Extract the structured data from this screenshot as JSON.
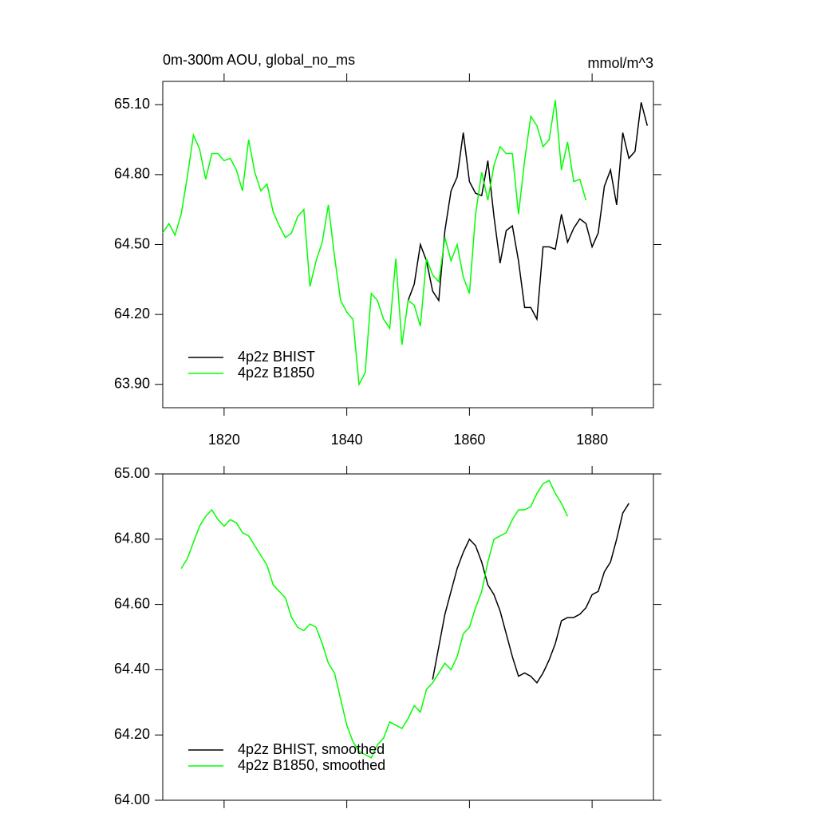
{
  "chart_data": [
    {
      "type": "line",
      "title": "0m-300m AOU, global_no_ms",
      "units": "mmol/m^3",
      "x": [
        1810,
        1811,
        1812,
        1813,
        1814,
        1815,
        1816,
        1817,
        1818,
        1819,
        1820,
        1821,
        1822,
        1823,
        1824,
        1825,
        1826,
        1827,
        1828,
        1829,
        1830,
        1831,
        1832,
        1833,
        1834,
        1835,
        1836,
        1837,
        1838,
        1839,
        1840,
        1841,
        1842,
        1843,
        1844,
        1845,
        1846,
        1847,
        1848,
        1849,
        1850,
        1851,
        1852,
        1853,
        1854,
        1855,
        1856,
        1857,
        1858,
        1859,
        1860,
        1861,
        1862,
        1863,
        1864,
        1865,
        1866,
        1867,
        1868,
        1869,
        1870,
        1871,
        1872,
        1873,
        1874,
        1875,
        1876,
        1877,
        1878,
        1879,
        1880,
        1881,
        1882,
        1883,
        1884,
        1885,
        1886,
        1887,
        1888,
        1889
      ],
      "series": [
        {
          "name": "4p2z BHIST",
          "color": "#000000",
          "values": [
            null,
            null,
            null,
            null,
            null,
            null,
            null,
            null,
            null,
            null,
            null,
            null,
            null,
            null,
            null,
            null,
            null,
            null,
            null,
            null,
            null,
            null,
            null,
            null,
            null,
            null,
            null,
            null,
            null,
            null,
            null,
            null,
            null,
            null,
            null,
            null,
            null,
            null,
            null,
            null,
            64.26,
            64.33,
            64.5,
            64.43,
            64.3,
            64.26,
            64.56,
            64.73,
            64.79,
            64.98,
            64.77,
            64.72,
            64.71,
            64.86,
            64.62,
            64.42,
            64.56,
            64.58,
            64.43,
            64.23,
            64.23,
            64.18,
            64.49,
            64.49,
            64.48,
            64.63,
            64.51,
            64.57,
            64.61,
            64.59,
            64.49,
            64.55,
            64.75,
            64.82,
            64.67,
            64.98,
            64.87,
            64.9,
            65.11,
            65.01
          ]
        },
        {
          "name": "4p2z B1850",
          "color": "#00ff00",
          "values": [
            64.55,
            64.59,
            64.54,
            64.63,
            64.79,
            64.97,
            64.91,
            64.78,
            64.89,
            64.89,
            64.86,
            64.87,
            64.82,
            64.73,
            64.95,
            64.81,
            64.73,
            64.76,
            64.64,
            64.58,
            64.53,
            64.55,
            64.62,
            64.65,
            64.32,
            64.43,
            64.51,
            64.67,
            64.45,
            64.26,
            64.21,
            64.18,
            63.9,
            63.95,
            64.29,
            64.26,
            64.18,
            64.14,
            64.44,
            64.07,
            64.26,
            64.24,
            64.15,
            64.44,
            64.37,
            64.34,
            64.53,
            64.43,
            64.5,
            64.36,
            64.29,
            64.63,
            64.81,
            64.69,
            64.84,
            64.92,
            64.89,
            64.89,
            64.63,
            64.86,
            65.05,
            65.01,
            64.92,
            64.95,
            65.12,
            64.82,
            64.94,
            64.77,
            64.78,
            64.69,
            null,
            null,
            null,
            null,
            null,
            null,
            null,
            null,
            null,
            null
          ]
        }
      ],
      "xlim": [
        1810,
        1890
      ],
      "xticks": [
        1820,
        1840,
        1860,
        1880
      ],
      "ylim": [
        63.8,
        65.2
      ],
      "yticks": [
        {
          "value": 63.9,
          "label": "63.90"
        },
        {
          "value": 64.2,
          "label": "64.20"
        },
        {
          "value": 64.5,
          "label": "64.50"
        },
        {
          "value": 64.8,
          "label": "64.80"
        },
        {
          "value": 65.1,
          "label": "65.10"
        }
      ],
      "legend": "lower left"
    },
    {
      "type": "line",
      "x": [
        1813,
        1814,
        1815,
        1816,
        1817,
        1818,
        1819,
        1820,
        1821,
        1822,
        1823,
        1824,
        1825,
        1826,
        1827,
        1828,
        1829,
        1830,
        1831,
        1832,
        1833,
        1834,
        1835,
        1836,
        1837,
        1838,
        1839,
        1840,
        1841,
        1842,
        1843,
        1844,
        1845,
        1846,
        1847,
        1848,
        1849,
        1850,
        1851,
        1852,
        1853,
        1854,
        1855,
        1856,
        1857,
        1858,
        1859,
        1860,
        1861,
        1862,
        1863,
        1864,
        1865,
        1866,
        1867,
        1868,
        1869,
        1870,
        1871,
        1872,
        1873,
        1874,
        1875,
        1876,
        1877,
        1878,
        1879,
        1880,
        1881,
        1882,
        1883,
        1884,
        1885,
        1886
      ],
      "series": [
        {
          "name": "4p2z BHIST, smoothed",
          "color": "#000000",
          "values": [
            null,
            null,
            null,
            null,
            null,
            null,
            null,
            null,
            null,
            null,
            null,
            null,
            null,
            null,
            null,
            null,
            null,
            null,
            null,
            null,
            null,
            null,
            null,
            null,
            null,
            null,
            null,
            null,
            null,
            null,
            null,
            null,
            null,
            null,
            null,
            null,
            null,
            null,
            null,
            null,
            null,
            64.37,
            64.47,
            64.57,
            64.64,
            64.71,
            64.76,
            64.8,
            64.78,
            64.73,
            64.66,
            64.63,
            64.58,
            64.51,
            64.44,
            64.38,
            64.39,
            64.38,
            64.36,
            64.39,
            64.43,
            64.48,
            64.55,
            64.56,
            64.56,
            64.57,
            64.59,
            64.63,
            64.64,
            64.7,
            64.73,
            64.8,
            64.88,
            64.91
          ]
        },
        {
          "name": "4p2z B1850, smoothed",
          "color": "#00ff00",
          "values": [
            64.71,
            64.74,
            64.79,
            64.84,
            64.87,
            64.89,
            64.86,
            64.84,
            64.86,
            64.85,
            64.82,
            64.81,
            64.78,
            64.75,
            64.72,
            64.66,
            64.64,
            64.62,
            64.56,
            64.53,
            64.52,
            64.54,
            64.53,
            64.48,
            64.42,
            64.39,
            64.31,
            64.23,
            64.18,
            64.15,
            64.14,
            64.13,
            64.17,
            64.19,
            64.24,
            64.23,
            64.22,
            64.25,
            64.29,
            64.27,
            64.34,
            64.36,
            64.39,
            64.42,
            64.4,
            64.44,
            64.51,
            64.53,
            64.59,
            64.64,
            64.73,
            64.8,
            64.81,
            64.82,
            64.86,
            64.89,
            64.89,
            64.9,
            64.94,
            64.97,
            64.98,
            64.94,
            64.91,
            64.87,
            null,
            null,
            null,
            null,
            null,
            null,
            null,
            null,
            null,
            null
          ]
        }
      ],
      "xlim": [
        1810,
        1890
      ],
      "xticks": [
        1820,
        1840,
        1860,
        1880
      ],
      "ylim": [
        64.0,
        65.0
      ],
      "yticks": [
        {
          "value": 64.0,
          "label": "64.00"
        },
        {
          "value": 64.2,
          "label": "64.20"
        },
        {
          "value": 64.4,
          "label": "64.40"
        },
        {
          "value": 64.6,
          "label": "64.60"
        },
        {
          "value": 64.8,
          "label": "64.80"
        },
        {
          "value": 65.0,
          "label": "65.00"
        }
      ],
      "legend": "lower left"
    }
  ]
}
